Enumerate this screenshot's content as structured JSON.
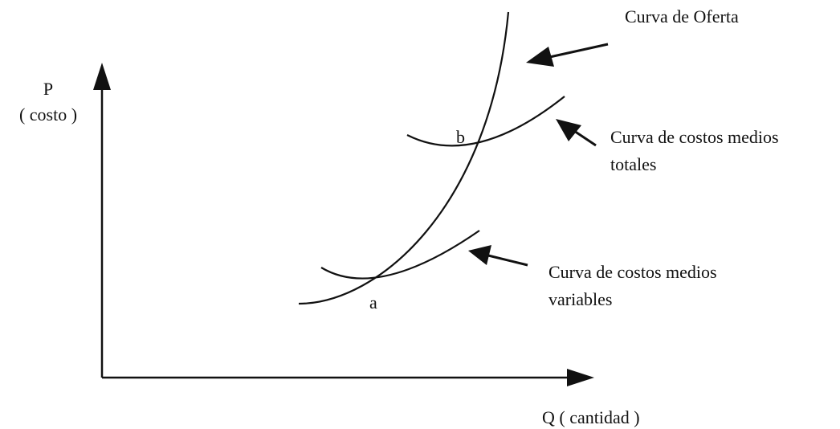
{
  "axes": {
    "y_label": "P",
    "y_sublabel": "( costo )",
    "x_label": "Q ( cantidad )"
  },
  "curves": {
    "supply": {
      "label": "Curva de Oferta"
    },
    "total_average_cost": {
      "label_lines": [
        "Curva de costos medios",
        "totales"
      ]
    },
    "variable_average_cost": {
      "label_lines": [
        "Curva de costos medios",
        "variables"
      ]
    }
  },
  "points": {
    "a": "a",
    "b": "b"
  }
}
